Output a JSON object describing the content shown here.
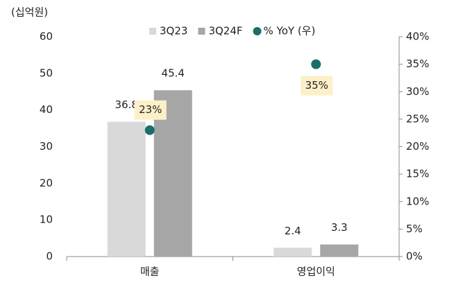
{
  "chart_data": {
    "type": "bar",
    "y_unit": "(십억원)",
    "categories": [
      "매출",
      "영업이익"
    ],
    "series": [
      {
        "name": "3Q23",
        "color": "#d9d9d9",
        "values": [
          36.8,
          2.4
        ]
      },
      {
        "name": "3Q24F",
        "color": "#a6a6a6",
        "values": [
          45.4,
          3.3
        ]
      },
      {
        "name": "% YoY (우)",
        "color": "#1b6e68",
        "type": "scatter",
        "axis": "y2",
        "values": [
          23,
          35
        ],
        "value_labels": [
          "23%",
          "35%"
        ]
      }
    ],
    "ylim": [
      0,
      60
    ],
    "yticks": [
      0,
      10,
      20,
      30,
      40,
      50,
      60
    ],
    "y2lim": [
      0,
      40
    ],
    "y2ticks": [
      {
        "value": 0,
        "label": "0%"
      },
      {
        "value": 5,
        "label": "5%"
      },
      {
        "value": 10,
        "label": "10%"
      },
      {
        "value": 15,
        "label": "15%"
      },
      {
        "value": 20,
        "label": "20%"
      },
      {
        "value": 25,
        "label": "25%"
      },
      {
        "value": 30,
        "label": "30%"
      },
      {
        "value": 35,
        "label": "35%"
      },
      {
        "value": 40,
        "label": "40%"
      }
    ],
    "legend": "top"
  }
}
